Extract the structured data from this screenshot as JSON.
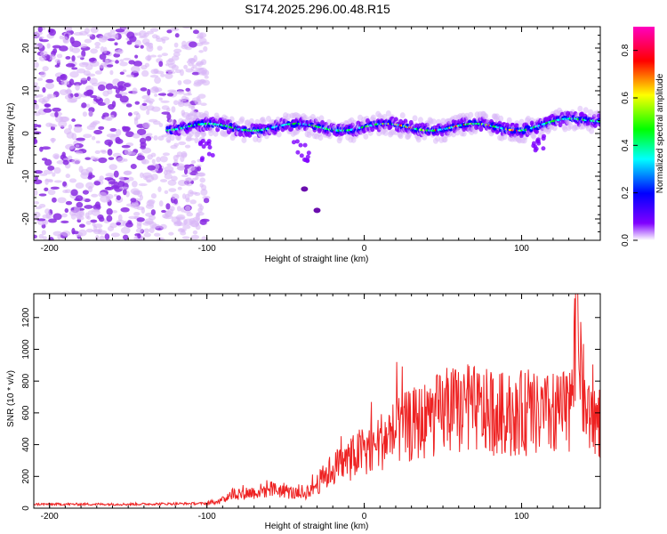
{
  "title": "S174.2025.296.00.48.R15",
  "chart_data": [
    {
      "type": "heatmap",
      "xlabel": "Height of straight line (km)",
      "ylabel": "Frequency (Hz)",
      "xlim": [
        -210,
        150
      ],
      "ylim": [
        -25,
        25
      ],
      "xticks": [
        -200,
        -100,
        0,
        100
      ],
      "yticks": [
        -20,
        -10,
        0,
        10,
        20
      ],
      "colorbar": {
        "label": "Normalized spectral amplitude",
        "range": [
          0,
          0.9
        ],
        "ticks": [
          0.0,
          0.2,
          0.4,
          0.6,
          0.8
        ],
        "tick_labels": [
          "0.0",
          "0.2",
          "0.4",
          "0.6",
          "0.8"
        ],
        "colors": [
          "#ffffff",
          "#8000ff",
          "#0000ff",
          "#00ffff",
          "#00ff00",
          "#ffff00",
          "#ff0000",
          "#ff00c0"
        ]
      },
      "features": {
        "scatter_region_x": [
          -210,
          -100
        ],
        "main_band": {
          "x": [
            -125,
            150
          ],
          "freq_center": 1.5,
          "peak_x": [
            10,
            100
          ]
        },
        "tail_points": [
          [
            -38,
            -13
          ],
          [
            -30,
            -18
          ]
        ]
      }
    },
    {
      "type": "line",
      "xlabel": "Height of straight line (km)",
      "ylabel": "SNR (10 * v/v)",
      "xlim": [
        -210,
        150
      ],
      "ylim": [
        0,
        1350
      ],
      "xticks": [
        -200,
        -100,
        0,
        100
      ],
      "yticks": [
        0,
        200,
        400,
        600,
        800,
        1000,
        1200
      ],
      "series": [
        {
          "name": "SNR",
          "color": "#ee2222",
          "x": [
            -210,
            -150,
            -100,
            -90,
            -85,
            -70,
            -60,
            -50,
            -40,
            -30,
            -20,
            -10,
            0,
            10,
            20,
            30,
            40,
            50,
            60,
            70,
            80,
            90,
            100,
            110,
            120,
            130,
            135,
            140,
            150
          ],
          "y": [
            25,
            25,
            30,
            50,
            90,
            100,
            120,
            110,
            80,
            150,
            250,
            300,
            370,
            420,
            480,
            520,
            560,
            600,
            620,
            620,
            600,
            590,
            600,
            580,
            590,
            600,
            1350,
            620,
            550
          ]
        }
      ]
    }
  ]
}
